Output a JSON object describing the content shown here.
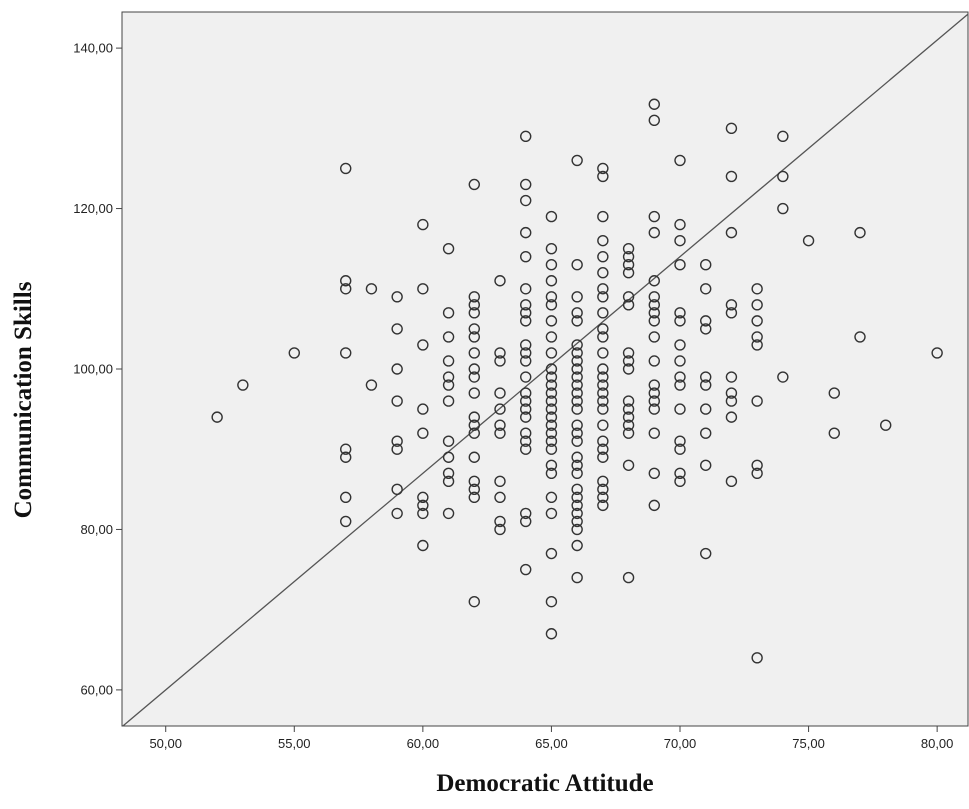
{
  "chart_data": {
    "type": "scatter",
    "xlabel": "Democratic Attitude",
    "ylabel": "Communication Skills",
    "xlim": [
      48.3,
      81.2
    ],
    "ylim": [
      55.5,
      144.5
    ],
    "x_ticks": [
      50,
      55,
      60,
      65,
      70,
      75,
      80
    ],
    "x_tick_labels": [
      "50,00",
      "55,00",
      "60,00",
      "65,00",
      "70,00",
      "75,00",
      "80,00"
    ],
    "y_ticks": [
      60,
      80,
      100,
      120,
      140
    ],
    "y_tick_labels": [
      "60,00",
      "80,00",
      "100,00",
      "120,00",
      "140,00"
    ],
    "grid": false,
    "plot_background": "#f0f0f0",
    "marker": "hollow-circle",
    "marker_color": "#333333",
    "reference_line": {
      "slope": 2.7,
      "intercept": -75.0,
      "color": "#555555"
    },
    "points": [
      [
        52,
        94
      ],
      [
        53,
        98
      ],
      [
        55,
        102
      ],
      [
        57,
        125
      ],
      [
        57,
        111
      ],
      [
        57,
        110
      ],
      [
        57,
        102
      ],
      [
        57,
        90
      ],
      [
        57,
        89
      ],
      [
        57,
        84
      ],
      [
        57,
        81
      ],
      [
        58,
        110
      ],
      [
        58,
        98
      ],
      [
        59,
        109
      ],
      [
        59,
        105
      ],
      [
        59,
        100
      ],
      [
        59,
        96
      ],
      [
        59,
        91
      ],
      [
        59,
        90
      ],
      [
        59,
        85
      ],
      [
        59,
        82
      ],
      [
        60,
        118
      ],
      [
        60,
        110
      ],
      [
        60,
        103
      ],
      [
        60,
        95
      ],
      [
        60,
        92
      ],
      [
        60,
        84
      ],
      [
        60,
        83
      ],
      [
        60,
        82
      ],
      [
        60,
        78
      ],
      [
        61,
        115
      ],
      [
        61,
        107
      ],
      [
        61,
        104
      ],
      [
        61,
        101
      ],
      [
        61,
        99
      ],
      [
        61,
        98
      ],
      [
        61,
        96
      ],
      [
        61,
        91
      ],
      [
        61,
        89
      ],
      [
        61,
        87
      ],
      [
        61,
        86
      ],
      [
        61,
        82
      ],
      [
        62,
        123
      ],
      [
        62,
        109
      ],
      [
        62,
        108
      ],
      [
        62,
        107
      ],
      [
        62,
        105
      ],
      [
        62,
        104
      ],
      [
        62,
        102
      ],
      [
        62,
        100
      ],
      [
        62,
        99
      ],
      [
        62,
        97
      ],
      [
        62,
        94
      ],
      [
        62,
        93
      ],
      [
        62,
        92
      ],
      [
        62,
        89
      ],
      [
        62,
        86
      ],
      [
        62,
        85
      ],
      [
        62,
        84
      ],
      [
        62,
        71
      ],
      [
        63,
        111
      ],
      [
        63,
        102
      ],
      [
        63,
        101
      ],
      [
        63,
        97
      ],
      [
        63,
        95
      ],
      [
        63,
        93
      ],
      [
        63,
        92
      ],
      [
        63,
        86
      ],
      [
        63,
        84
      ],
      [
        63,
        81
      ],
      [
        63,
        80
      ],
      [
        64,
        129
      ],
      [
        64,
        123
      ],
      [
        64,
        121
      ],
      [
        64,
        117
      ],
      [
        64,
        114
      ],
      [
        64,
        110
      ],
      [
        64,
        108
      ],
      [
        64,
        107
      ],
      [
        64,
        106
      ],
      [
        64,
        103
      ],
      [
        64,
        102
      ],
      [
        64,
        101
      ],
      [
        64,
        99
      ],
      [
        64,
        97
      ],
      [
        64,
        96
      ],
      [
        64,
        95
      ],
      [
        64,
        94
      ],
      [
        64,
        92
      ],
      [
        64,
        91
      ],
      [
        64,
        90
      ],
      [
        64,
        82
      ],
      [
        64,
        81
      ],
      [
        64,
        75
      ],
      [
        65,
        119
      ],
      [
        65,
        115
      ],
      [
        65,
        113
      ],
      [
        65,
        111
      ],
      [
        65,
        109
      ],
      [
        65,
        108
      ],
      [
        65,
        106
      ],
      [
        65,
        104
      ],
      [
        65,
        102
      ],
      [
        65,
        100
      ],
      [
        65,
        99
      ],
      [
        65,
        98
      ],
      [
        65,
        97
      ],
      [
        65,
        96
      ],
      [
        65,
        95
      ],
      [
        65,
        94
      ],
      [
        65,
        93
      ],
      [
        65,
        92
      ],
      [
        65,
        91
      ],
      [
        65,
        90
      ],
      [
        65,
        88
      ],
      [
        65,
        87
      ],
      [
        65,
        84
      ],
      [
        65,
        82
      ],
      [
        65,
        77
      ],
      [
        65,
        71
      ],
      [
        65,
        67
      ],
      [
        66,
        126
      ],
      [
        66,
        113
      ],
      [
        66,
        109
      ],
      [
        66,
        107
      ],
      [
        66,
        106
      ],
      [
        66,
        103
      ],
      [
        66,
        102
      ],
      [
        66,
        101
      ],
      [
        66,
        100
      ],
      [
        66,
        99
      ],
      [
        66,
        98
      ],
      [
        66,
        97
      ],
      [
        66,
        96
      ],
      [
        66,
        95
      ],
      [
        66,
        93
      ],
      [
        66,
        92
      ],
      [
        66,
        91
      ],
      [
        66,
        89
      ],
      [
        66,
        88
      ],
      [
        66,
        87
      ],
      [
        66,
        85
      ],
      [
        66,
        84
      ],
      [
        66,
        83
      ],
      [
        66,
        82
      ],
      [
        66,
        81
      ],
      [
        66,
        80
      ],
      [
        66,
        78
      ],
      [
        66,
        74
      ],
      [
        67,
        125
      ],
      [
        67,
        124
      ],
      [
        67,
        119
      ],
      [
        67,
        116
      ],
      [
        67,
        114
      ],
      [
        67,
        112
      ],
      [
        67,
        110
      ],
      [
        67,
        109
      ],
      [
        67,
        107
      ],
      [
        67,
        105
      ],
      [
        67,
        104
      ],
      [
        67,
        102
      ],
      [
        67,
        100
      ],
      [
        67,
        99
      ],
      [
        67,
        98
      ],
      [
        67,
        97
      ],
      [
        67,
        96
      ],
      [
        67,
        95
      ],
      [
        67,
        93
      ],
      [
        67,
        91
      ],
      [
        67,
        90
      ],
      [
        67,
        89
      ],
      [
        67,
        86
      ],
      [
        67,
        85
      ],
      [
        67,
        84
      ],
      [
        67,
        83
      ],
      [
        68,
        115
      ],
      [
        68,
        114
      ],
      [
        68,
        113
      ],
      [
        68,
        112
      ],
      [
        68,
        109
      ],
      [
        68,
        108
      ],
      [
        68,
        102
      ],
      [
        68,
        101
      ],
      [
        68,
        100
      ],
      [
        68,
        96
      ],
      [
        68,
        95
      ],
      [
        68,
        94
      ],
      [
        68,
        93
      ],
      [
        68,
        92
      ],
      [
        68,
        88
      ],
      [
        68,
        74
      ],
      [
        69,
        133
      ],
      [
        69,
        131
      ],
      [
        69,
        119
      ],
      [
        69,
        117
      ],
      [
        69,
        111
      ],
      [
        69,
        109
      ],
      [
        69,
        108
      ],
      [
        69,
        107
      ],
      [
        69,
        106
      ],
      [
        69,
        104
      ],
      [
        69,
        101
      ],
      [
        69,
        98
      ],
      [
        69,
        97
      ],
      [
        69,
        96
      ],
      [
        69,
        95
      ],
      [
        69,
        92
      ],
      [
        69,
        87
      ],
      [
        69,
        83
      ],
      [
        70,
        126
      ],
      [
        70,
        118
      ],
      [
        70,
        116
      ],
      [
        70,
        113
      ],
      [
        70,
        107
      ],
      [
        70,
        106
      ],
      [
        70,
        103
      ],
      [
        70,
        101
      ],
      [
        70,
        99
      ],
      [
        70,
        98
      ],
      [
        70,
        95
      ],
      [
        70,
        91
      ],
      [
        70,
        90
      ],
      [
        70,
        87
      ],
      [
        70,
        86
      ],
      [
        71,
        113
      ],
      [
        71,
        110
      ],
      [
        71,
        106
      ],
      [
        71,
        105
      ],
      [
        71,
        99
      ],
      [
        71,
        98
      ],
      [
        71,
        95
      ],
      [
        71,
        92
      ],
      [
        71,
        88
      ],
      [
        71,
        77
      ],
      [
        72,
        130
      ],
      [
        72,
        124
      ],
      [
        72,
        117
      ],
      [
        72,
        108
      ],
      [
        72,
        107
      ],
      [
        72,
        99
      ],
      [
        72,
        97
      ],
      [
        72,
        96
      ],
      [
        72,
        94
      ],
      [
        72,
        86
      ],
      [
        73,
        110
      ],
      [
        73,
        108
      ],
      [
        73,
        106
      ],
      [
        73,
        104
      ],
      [
        73,
        103
      ],
      [
        73,
        96
      ],
      [
        73,
        88
      ],
      [
        73,
        87
      ],
      [
        73,
        64
      ],
      [
        74,
        129
      ],
      [
        74,
        124
      ],
      [
        74,
        120
      ],
      [
        74,
        99
      ],
      [
        75,
        116
      ],
      [
        76,
        97
      ],
      [
        76,
        92
      ],
      [
        77,
        117
      ],
      [
        77,
        104
      ],
      [
        78,
        93
      ],
      [
        80,
        102
      ]
    ]
  }
}
